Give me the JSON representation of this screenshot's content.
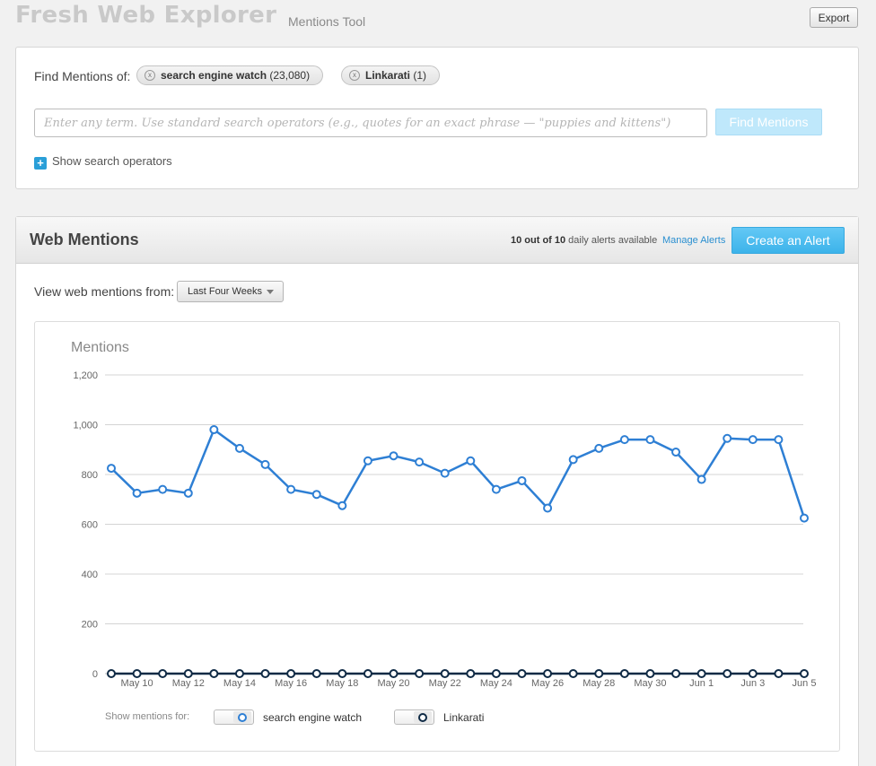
{
  "app": {
    "title": "Fresh Web Explorer",
    "subtitle": "Mentions Tool",
    "export_label": "Export"
  },
  "search": {
    "find_label": "Find Mentions of:",
    "chips": [
      {
        "term": "search engine watch",
        "count": "(23,080)"
      },
      {
        "term": "Linkarati",
        "count": "(1)"
      }
    ],
    "placeholder": "Enter any term. Use standard search operators (e.g., quotes for an exact phrase — \"puppies and kittens\")",
    "value": "",
    "find_button": "Find Mentions",
    "show_operators": "Show search operators"
  },
  "mentions": {
    "title": "Web Mentions",
    "alerts_prefix": "10 out of 10",
    "alerts_suffix": " daily alerts available",
    "manage_alerts": "Manage Alerts",
    "create_alert": "Create an Alert",
    "view_from_label": "View web mentions from:",
    "range_selected": "Last Four Weeks"
  },
  "legend": {
    "label": "Show mentions for:"
  },
  "colors": {
    "accent": "#2a9fd8",
    "series_1": "#2e7fd4",
    "series_2": "#0f2a45"
  },
  "chart_data": {
    "type": "line",
    "title": "Mentions",
    "ylim": [
      0,
      1200
    ],
    "yticks": [
      "0",
      "200",
      "400",
      "600",
      "800",
      "1,000",
      "1,200"
    ],
    "ytick_values": [
      0,
      200,
      400,
      600,
      800,
      1000,
      1200
    ],
    "x": [
      "May 9",
      "May 10",
      "May 11",
      "May 12",
      "May 13",
      "May 14",
      "May 15",
      "May 16",
      "May 17",
      "May 18",
      "May 19",
      "May 20",
      "May 21",
      "May 22",
      "May 23",
      "May 24",
      "May 25",
      "May 26",
      "May 27",
      "May 28",
      "May 29",
      "May 30",
      "May 31",
      "Jun 1",
      "Jun 2",
      "Jun 3",
      "Jun 4",
      "Jun 5"
    ],
    "xtick_labels": [
      "May 10",
      "May 12",
      "May 14",
      "May 16",
      "May 18",
      "May 20",
      "May 22",
      "May 24",
      "May 26",
      "May 28",
      "May 30",
      "Jun 1",
      "Jun 3",
      "Jun 5"
    ],
    "grid": true,
    "legend_position": "bottom",
    "series": [
      {
        "name": "search engine watch",
        "values": [
          825,
          725,
          740,
          725,
          980,
          905,
          840,
          740,
          720,
          675,
          855,
          875,
          850,
          805,
          855,
          740,
          775,
          665,
          860,
          905,
          940,
          940,
          890,
          780,
          945,
          940,
          940,
          625
        ]
      },
      {
        "name": "Linkarati",
        "values": [
          0,
          0,
          0,
          0,
          0,
          0,
          0,
          0,
          0,
          0,
          0,
          0,
          0,
          0,
          0,
          0,
          0,
          0,
          0,
          0,
          0,
          0,
          0,
          0,
          0,
          0,
          0,
          0
        ]
      }
    ]
  }
}
